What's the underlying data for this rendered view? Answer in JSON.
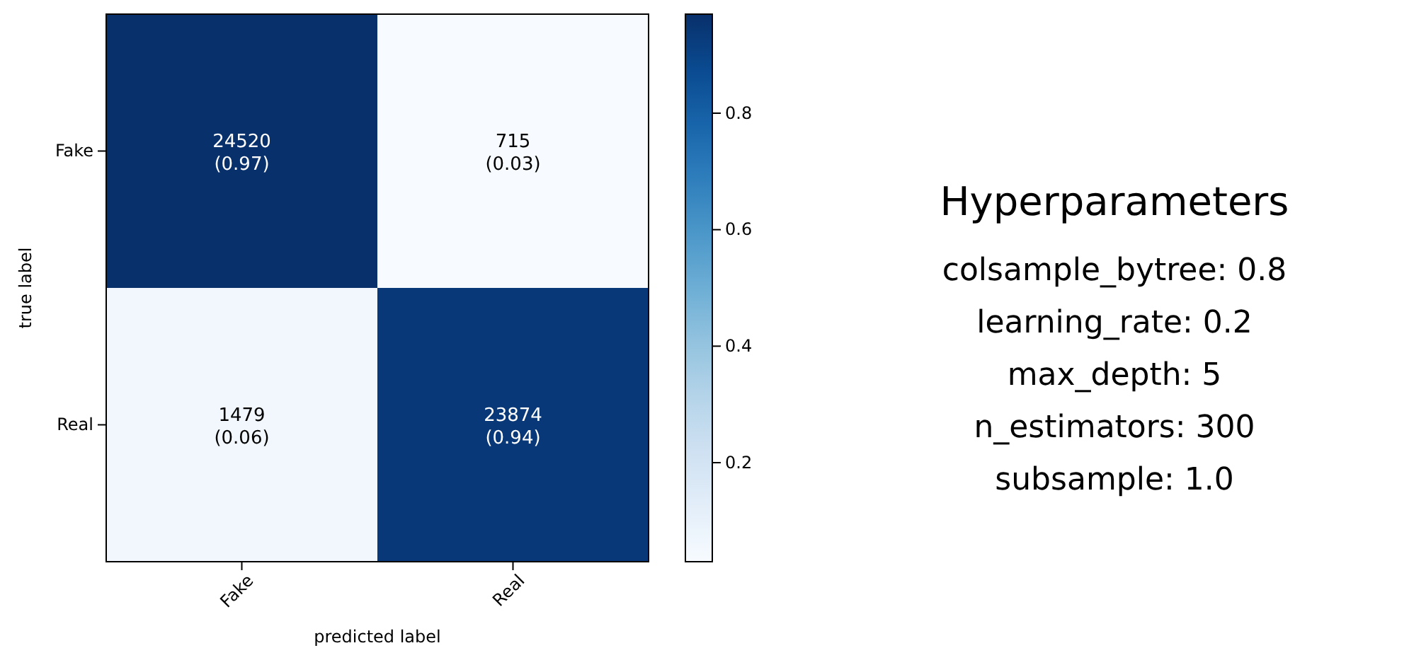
{
  "chart_data": [
    {
      "type": "heatmap",
      "xlabel": "predicted label",
      "ylabel": "true label",
      "categories": [
        "Fake",
        "Real"
      ],
      "y_categories": [
        "Fake",
        "Real"
      ],
      "cells": [
        [
          0.97,
          0.03
        ],
        [
          0.06,
          0.94
        ]
      ],
      "cell_labels": [
        [
          "24520\n(0.97)",
          "715\n(0.03)"
        ],
        [
          "1479\n(0.06)",
          "23874\n(0.94)"
        ]
      ],
      "clim": [
        0.03,
        0.97
      ],
      "cticks": [
        0.2,
        0.4,
        0.6,
        0.8
      ]
    },
    {
      "type": "other",
      "title": "Hyperparameters",
      "annotations": [
        "colsample_bytree: 0.8",
        "learning_rate: 0.2",
        "max_depth: 5",
        "n_estimators: 300",
        "subsample: 1.0"
      ]
    }
  ]
}
